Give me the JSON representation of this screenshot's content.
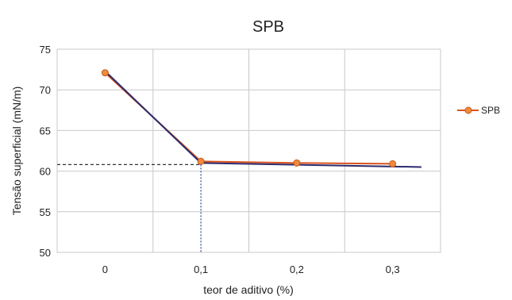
{
  "chart_data": {
    "type": "line",
    "title": "SPB",
    "xlabel": "teor de aditivo (%)",
    "ylabel": "Tensão superficial (mN/m)",
    "categories": [
      "0",
      "0,1",
      "0,2",
      "0,3"
    ],
    "x": [
      0,
      0.1,
      0.2,
      0.3
    ],
    "ylim": [
      50,
      75
    ],
    "yticks": [
      "50",
      "55",
      "60",
      "65",
      "70",
      "75"
    ],
    "grid": true,
    "legend_position": "right",
    "series": [
      {
        "name": "SPB",
        "values": [
          72.1,
          61.2,
          61.0,
          60.9
        ],
        "color": "#d9531e",
        "marker_color": "#f08a3c"
      }
    ],
    "fit_line": {
      "x": [
        0,
        0.1,
        0.33
      ],
      "y": [
        72.3,
        61.0,
        60.5
      ],
      "color": "#2b2b6e"
    },
    "reference_lines": {
      "horizontal_y": 60.8,
      "horizontal_color": "#333333",
      "vertical_x": 0.1,
      "vertical_color": "#3a4fa0"
    }
  }
}
